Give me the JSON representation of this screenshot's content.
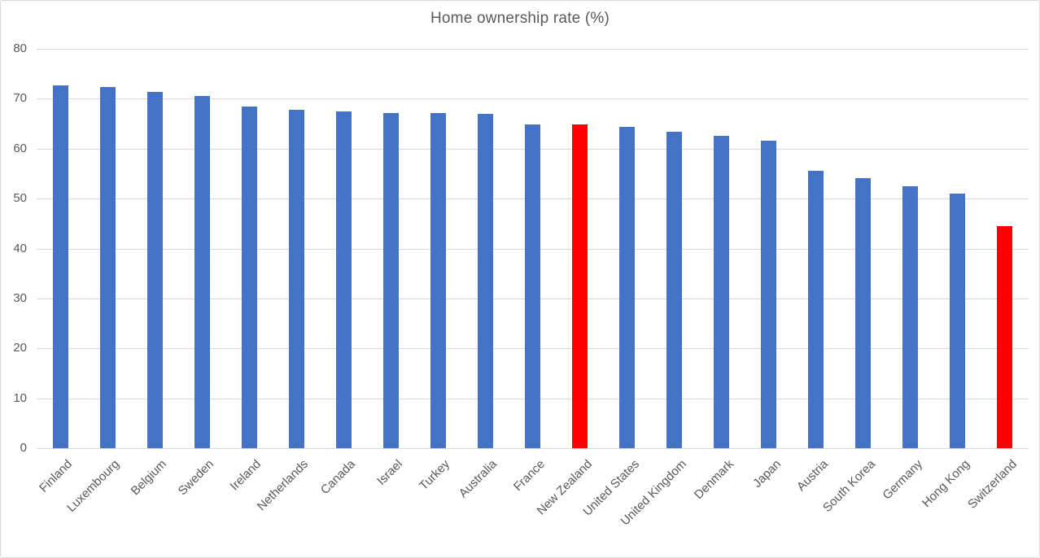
{
  "chart_data": {
    "type": "bar",
    "title": "Home ownership rate (%)",
    "xlabel": "",
    "ylabel": "",
    "categories": [
      "Finland",
      "Luxembourg",
      "Belgium",
      "Sweden",
      "Ireland",
      "Netherlands",
      "Canada",
      "Israel",
      "Turkey",
      "Australia",
      "France",
      "New Zealand",
      "United States",
      "United Kingdom",
      "Denmark",
      "Japan",
      "Austria",
      "South Korea",
      "Germany",
      "Hong Kong",
      "Switzerland"
    ],
    "values": [
      72.7,
      72.4,
      71.3,
      70.6,
      68.5,
      67.8,
      67.5,
      67.1,
      67.1,
      66.9,
      64.9,
      64.8,
      64.4,
      63.4,
      62.6,
      61.6,
      55.6,
      54.1,
      52.4,
      51.0,
      44.5
    ],
    "highlighted_categories": [
      "New Zealand",
      "Switzerland"
    ],
    "ylim": [
      0,
      80
    ],
    "yticks": [
      0,
      10,
      20,
      30,
      40,
      50,
      60,
      70,
      80
    ],
    "grid": true,
    "legend": "none",
    "colors": {
      "bar": "#4472C4",
      "highlight": "#FF0000",
      "gridline": "#D9D9D9",
      "axis_line": "#D9D9D9",
      "axis_text": "#595959",
      "title_text": "#595959",
      "frame_border": "#D9D9D9"
    }
  }
}
